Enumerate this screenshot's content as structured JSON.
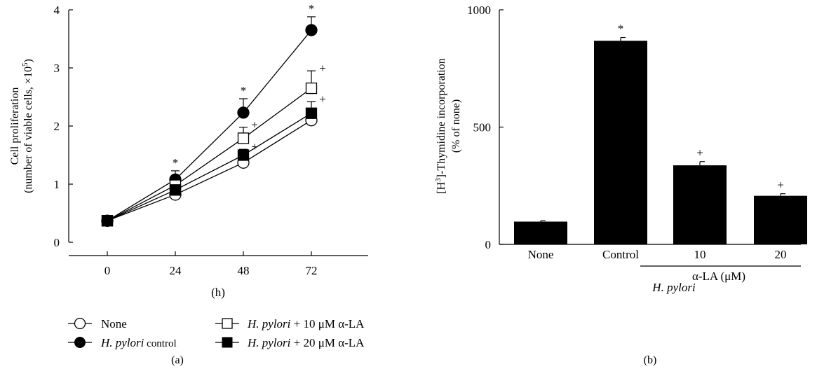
{
  "chart_data": [
    {
      "type": "line",
      "panel_label": "(a)",
      "xlabel": "(h)",
      "ylabel_line1": "Cell proliferation",
      "ylabel_line2_pre": "(number of viable cells, ×10",
      "ylabel_line2_sup": "5",
      "ylabel_line2_post": ")",
      "x": [
        0,
        24,
        48,
        72
      ],
      "x_ticks": [
        "0",
        "24",
        "48",
        "72"
      ],
      "y_ticks": [
        "0",
        "1",
        "2",
        "3",
        "4"
      ],
      "ylim": [
        0,
        4
      ],
      "series": [
        {
          "key": "none",
          "name": "None",
          "marker": "circle",
          "fill": "open",
          "values": [
            0.37,
            0.82,
            1.37,
            2.1
          ],
          "errors": [
            0.03,
            0.05,
            0.06,
            0.08
          ],
          "annotations": [
            "",
            "",
            "",
            ""
          ]
        },
        {
          "key": "control",
          "name_italic": "H. pylori",
          "name_rest": " control",
          "marker": "circle",
          "fill": "filled",
          "values": [
            0.37,
            1.08,
            2.23,
            3.65
          ],
          "errors": [
            0.03,
            0.15,
            0.24,
            0.23
          ],
          "annotations": [
            "",
            "*",
            "*",
            "*"
          ]
        },
        {
          "key": "la10",
          "name_italic": "H. pylori",
          "name_rest": " + 10 μM α-LA",
          "marker": "square",
          "fill": "open",
          "values": [
            0.37,
            0.98,
            1.79,
            2.65
          ],
          "errors": [
            0.03,
            0.06,
            0.19,
            0.3
          ],
          "annotations": [
            "",
            "",
            "+",
            "+"
          ]
        },
        {
          "key": "la20",
          "name_italic": "H. pylori",
          "name_rest": " + 20 μM α-LA",
          "marker": "square",
          "fill": "filled",
          "values": [
            0.37,
            0.9,
            1.5,
            2.22
          ],
          "errors": [
            0.03,
            0.05,
            0.1,
            0.2
          ],
          "annotations": [
            "",
            "",
            "+",
            "+"
          ]
        }
      ],
      "legend_placement": "bottom"
    },
    {
      "type": "bar",
      "panel_label": "(b)",
      "ylabel_pre": "[H",
      "ylabel_sup": "3",
      "ylabel_post": "]-Thymidine incorporation",
      "ylabel_line2": "(% of none)",
      "categories": [
        "None",
        "Control",
        "10",
        "20"
      ],
      "values": [
        97,
        868,
        337,
        207
      ],
      "errors": [
        4,
        14,
        16,
        9
      ],
      "annotations": [
        "",
        "*",
        "+",
        "+"
      ],
      "y_ticks": [
        "0",
        "500",
        "1000"
      ],
      "ylim": [
        0,
        1000
      ],
      "group_label": "α-LA (μM)",
      "group_label2": "H. pylori",
      "bar_color": "#000000"
    }
  ]
}
